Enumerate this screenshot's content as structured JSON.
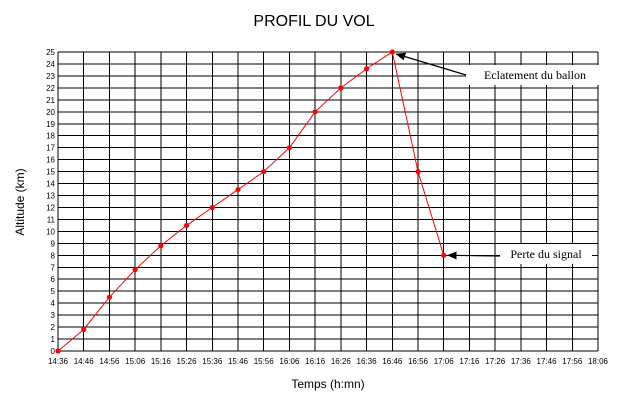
{
  "chart_data": {
    "type": "line",
    "title": "PROFIL DU VOL",
    "xlabel": "Temps (h:mn)",
    "ylabel": "Altitude (km)",
    "x_ticks": [
      "14:36",
      "14:46",
      "14:56",
      "15:06",
      "15:16",
      "15:26",
      "15:36",
      "15:46",
      "15:56",
      "16:06",
      "16:16",
      "16:26",
      "16:36",
      "16:46",
      "16:56",
      "17:06",
      "17:16",
      "17:26",
      "17:36",
      "17:46",
      "17:56",
      "18:06"
    ],
    "y_ticks": [
      "0",
      "1",
      "2",
      "3",
      "4",
      "5",
      "6",
      "7",
      "8",
      "9",
      "10",
      "11",
      "12",
      "13",
      "14",
      "15",
      "16",
      "17",
      "18",
      "19",
      "20",
      "21",
      "22",
      "23",
      "24",
      "25"
    ],
    "ylim": [
      0,
      25
    ],
    "grid": true,
    "legend": "none",
    "line_color": "#ff0000",
    "series": [
      {
        "x": [
          "14:36",
          "14:46",
          "14:56",
          "15:06",
          "15:16",
          "15:26",
          "15:36",
          "15:46",
          "15:56",
          "16:06",
          "16:16",
          "16:26",
          "16:36",
          "16:46",
          "16:56",
          "17:06"
        ],
        "values": [
          0,
          1.8,
          4.5,
          6.8,
          8.8,
          10.5,
          12,
          13.5,
          15,
          17,
          20,
          22,
          23.6,
          25,
          15,
          8
        ]
      }
    ],
    "annotations": [
      {
        "text": "Eclatement du ballon",
        "x": "16:46",
        "y": 25
      },
      {
        "text": "Perte du signal",
        "x": "17:06",
        "y": 8
      }
    ]
  }
}
